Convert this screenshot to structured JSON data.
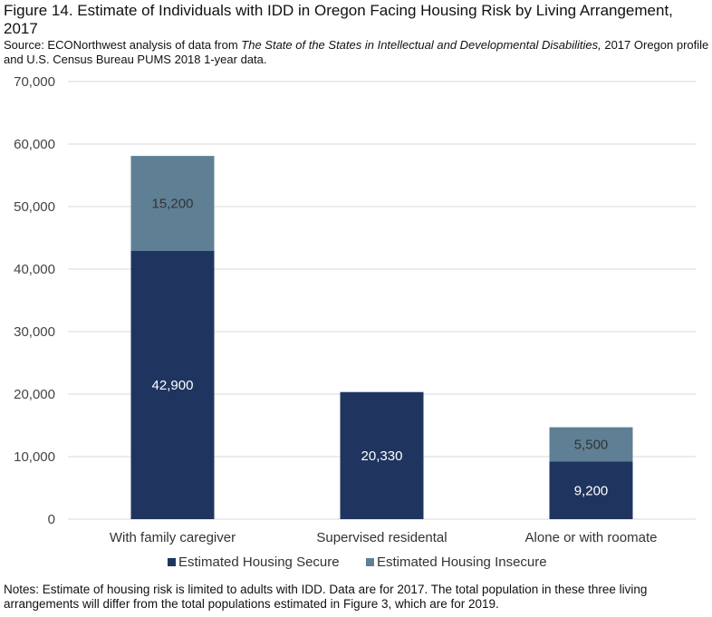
{
  "title": "Figure 14. Estimate of Individuals with IDD in Oregon Facing Housing Risk by Living Arrangement, 2017",
  "source": {
    "prefix": "Source: ECONorthwest analysis of data from ",
    "italic": "The State of the States in Intellectual and Developmental Disabilities,",
    "suffix": " 2017 Oregon profile and U.S. Census Bureau PUMS 2018 1-year data."
  },
  "notes": "Notes: Estimate of housing risk is limited to adults with IDD. Data are for 2017. The total population in these three living arrangements will differ from the total populations estimated in Figure 3, which are for 2019.",
  "colors": {
    "secure": "#1f3560",
    "insecure": "#5f7f95",
    "grid": "#d9d9d9"
  },
  "chart_data": {
    "type": "bar",
    "stacked": true,
    "categories": [
      "With family caregiver",
      "Supervised residental",
      "Alone or with roomate"
    ],
    "series": [
      {
        "name": "Estimated Housing Secure",
        "values": [
          42900,
          20330,
          9200
        ],
        "labels": [
          "42,900",
          "20,330",
          "9,200"
        ]
      },
      {
        "name": "Estimated Housing Insecure",
        "values": [
          15200,
          0,
          5500
        ],
        "labels": [
          "15,200",
          "",
          "5,500"
        ]
      }
    ],
    "ylim": [
      0,
      70000
    ],
    "yticks": [
      "0",
      "10,000",
      "20,000",
      "30,000",
      "40,000",
      "50,000",
      "60,000",
      "70,000"
    ],
    "grid": true,
    "legend": "bottom"
  }
}
